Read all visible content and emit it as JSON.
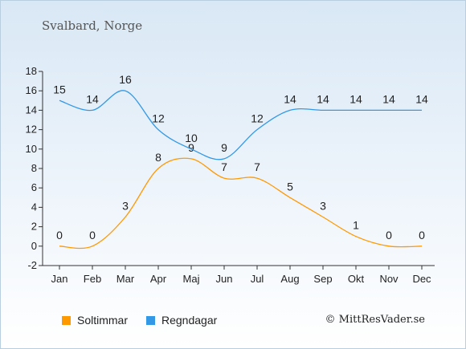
{
  "subtitle": "Svalbard, Norge",
  "credit": "© MittResVader.se",
  "chart_data": {
    "type": "line",
    "categories": [
      "Jan",
      "Feb",
      "Mar",
      "Apr",
      "Maj",
      "Jun",
      "Jul",
      "Aug",
      "Sep",
      "Okt",
      "Nov",
      "Dec"
    ],
    "yticks": [
      -2,
      0,
      2,
      4,
      6,
      8,
      10,
      12,
      14,
      16,
      18
    ],
    "ylim": [
      -2,
      18
    ],
    "grid": false,
    "legend_placement": "bottom",
    "series": [
      {
        "name": "Soltimmar",
        "color": "#ff9900",
        "values": [
          0,
          0,
          3,
          8,
          9,
          7,
          7,
          5,
          3,
          1,
          0,
          0
        ]
      },
      {
        "name": "Regndagar",
        "color": "#3399e6",
        "values": [
          15,
          14,
          16,
          12,
          10,
          9,
          12,
          14,
          14,
          14,
          14,
          14
        ]
      }
    ]
  }
}
